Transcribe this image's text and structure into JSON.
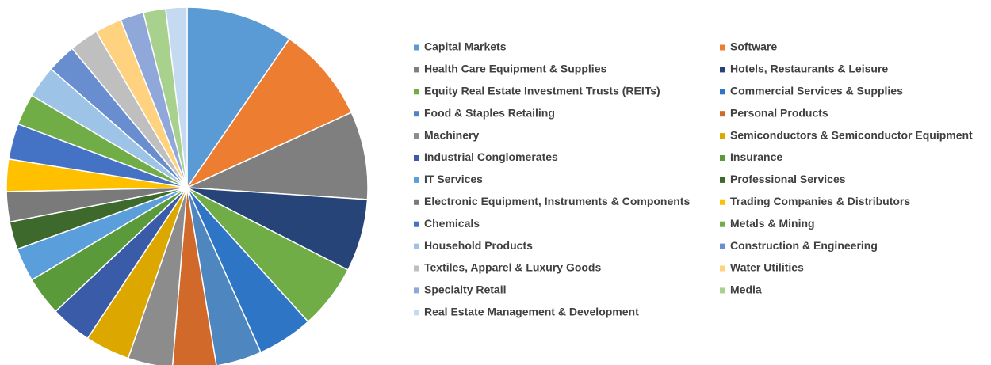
{
  "chart_data": {
    "type": "pie",
    "categories": [
      "Capital Markets",
      "Software",
      "Health Care Equipment & Supplies",
      "Hotels, Restaurants & Leisure",
      "Equity Real Estate Investment Trusts (REITs)",
      "Commercial Services & Supplies",
      "Food & Staples Retailing",
      "Personal Products",
      "Machinery",
      "Semiconductors & Semiconductor Equipment",
      "Industrial Conglomerates",
      "Insurance",
      "IT Services",
      "Professional Services",
      "Electronic Equipment, Instruments & Components",
      "Trading Companies & Distributors",
      "Chemicals",
      "Metals & Mining",
      "Household Products",
      "Construction & Engineering",
      "Textiles, Apparel & Luxury Goods",
      "Water Utilities",
      "Specialty Retail",
      "Media",
      "Real Estate Management & Development"
    ],
    "values": [
      9.6,
      8.6,
      7.9,
      6.5,
      5.8,
      5.0,
      4.1,
      3.9,
      4.0,
      4.0,
      3.7,
      3.5,
      3.0,
      2.5,
      2.7,
      2.9,
      3.2,
      2.8,
      2.9,
      2.6,
      2.6,
      2.4,
      2.1,
      2.0,
      1.9
    ],
    "colors": [
      "#5b9bd5",
      "#ed7d31",
      "#7f7f7f",
      "#264478",
      "#70ad47",
      "#2e75c6",
      "#4e86c0",
      "#d0692a",
      "#8c8c8c",
      "#dca800",
      "#3a5ba8",
      "#5a9a3b",
      "#5a9fdc",
      "#3d6a2c",
      "#7a7a7a",
      "#ffc000",
      "#4472c4",
      "#70ad47",
      "#9dc3e6",
      "#698ed0",
      "#bfbfbf",
      "#ffd280",
      "#8fa7d9",
      "#a9d18e",
      "#c5d9f1"
    ],
    "legend": "right"
  }
}
